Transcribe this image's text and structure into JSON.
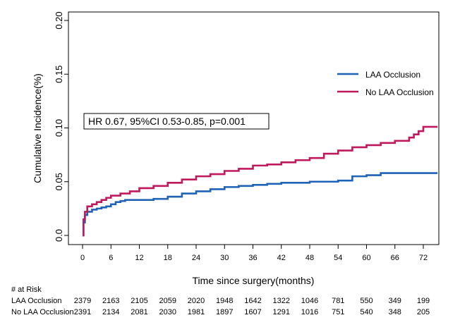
{
  "chart_data": {
    "type": "line",
    "step": true,
    "title": "",
    "xlabel": "Time since surgery(months)",
    "ylabel": "Cumulative Incidence(%)",
    "xlim": [
      -1,
      76
    ],
    "ylim": [
      0,
      0.2
    ],
    "xticks": [
      0,
      6,
      12,
      18,
      24,
      30,
      36,
      42,
      48,
      54,
      60,
      66,
      72
    ],
    "yticks": [
      "0.0",
      "0.05",
      "0.10",
      "0.15",
      "0.20"
    ],
    "legend_position": "right",
    "annotation": "HR 0.67, 95%CI 0.53-0.85, p=0.001",
    "series": [
      {
        "name": "LAA Occlusion",
        "color": "#1f63b8",
        "x": [
          0,
          0.2,
          0.5,
          1,
          2,
          3,
          4,
          5,
          6,
          7,
          8,
          9,
          10,
          12,
          15,
          18,
          21,
          24,
          27,
          30,
          33,
          36,
          39,
          42,
          45,
          48,
          51,
          54,
          57,
          60,
          63,
          66,
          69,
          72,
          75
        ],
        "y": [
          0.0,
          0.012,
          0.019,
          0.022,
          0.024,
          0.025,
          0.026,
          0.027,
          0.029,
          0.031,
          0.032,
          0.033,
          0.033,
          0.033,
          0.034,
          0.036,
          0.039,
          0.041,
          0.043,
          0.045,
          0.046,
          0.047,
          0.048,
          0.049,
          0.049,
          0.05,
          0.05,
          0.051,
          0.055,
          0.056,
          0.058,
          0.058,
          0.058,
          0.058,
          0.058
        ]
      },
      {
        "name": "No LAA Occlusion",
        "color": "#c0185c",
        "x": [
          0,
          0.2,
          0.5,
          1,
          2,
          3,
          4,
          5,
          6,
          8,
          10,
          12,
          15,
          18,
          21,
          24,
          27,
          30,
          33,
          36,
          39,
          42,
          45,
          48,
          51,
          54,
          57,
          60,
          63,
          66,
          69,
          70,
          71,
          72,
          75
        ],
        "y": [
          0.0,
          0.015,
          0.022,
          0.027,
          0.029,
          0.031,
          0.033,
          0.035,
          0.037,
          0.039,
          0.041,
          0.044,
          0.046,
          0.049,
          0.052,
          0.055,
          0.057,
          0.06,
          0.062,
          0.065,
          0.066,
          0.068,
          0.07,
          0.072,
          0.076,
          0.079,
          0.082,
          0.084,
          0.086,
          0.088,
          0.091,
          0.094,
          0.097,
          0.101,
          0.101
        ]
      }
    ],
    "at_risk": {
      "title": "# at Risk",
      "times": [
        0,
        6,
        12,
        18,
        24,
        30,
        36,
        42,
        48,
        54,
        60,
        66,
        72
      ],
      "rows": [
        {
          "label": "LAA Occlusion",
          "values": [
            "2379",
            "2163",
            "2105",
            "2059",
            "2020",
            "1948",
            "1642",
            "1322",
            "1046",
            "781",
            "550",
            "349",
            "199"
          ]
        },
        {
          "label": "No LAA Occlusion",
          "values": [
            "2391",
            "2134",
            "2081",
            "2030",
            "1981",
            "1897",
            "1607",
            "1291",
            "1016",
            "751",
            "540",
            "348",
            "205"
          ]
        }
      ]
    }
  }
}
